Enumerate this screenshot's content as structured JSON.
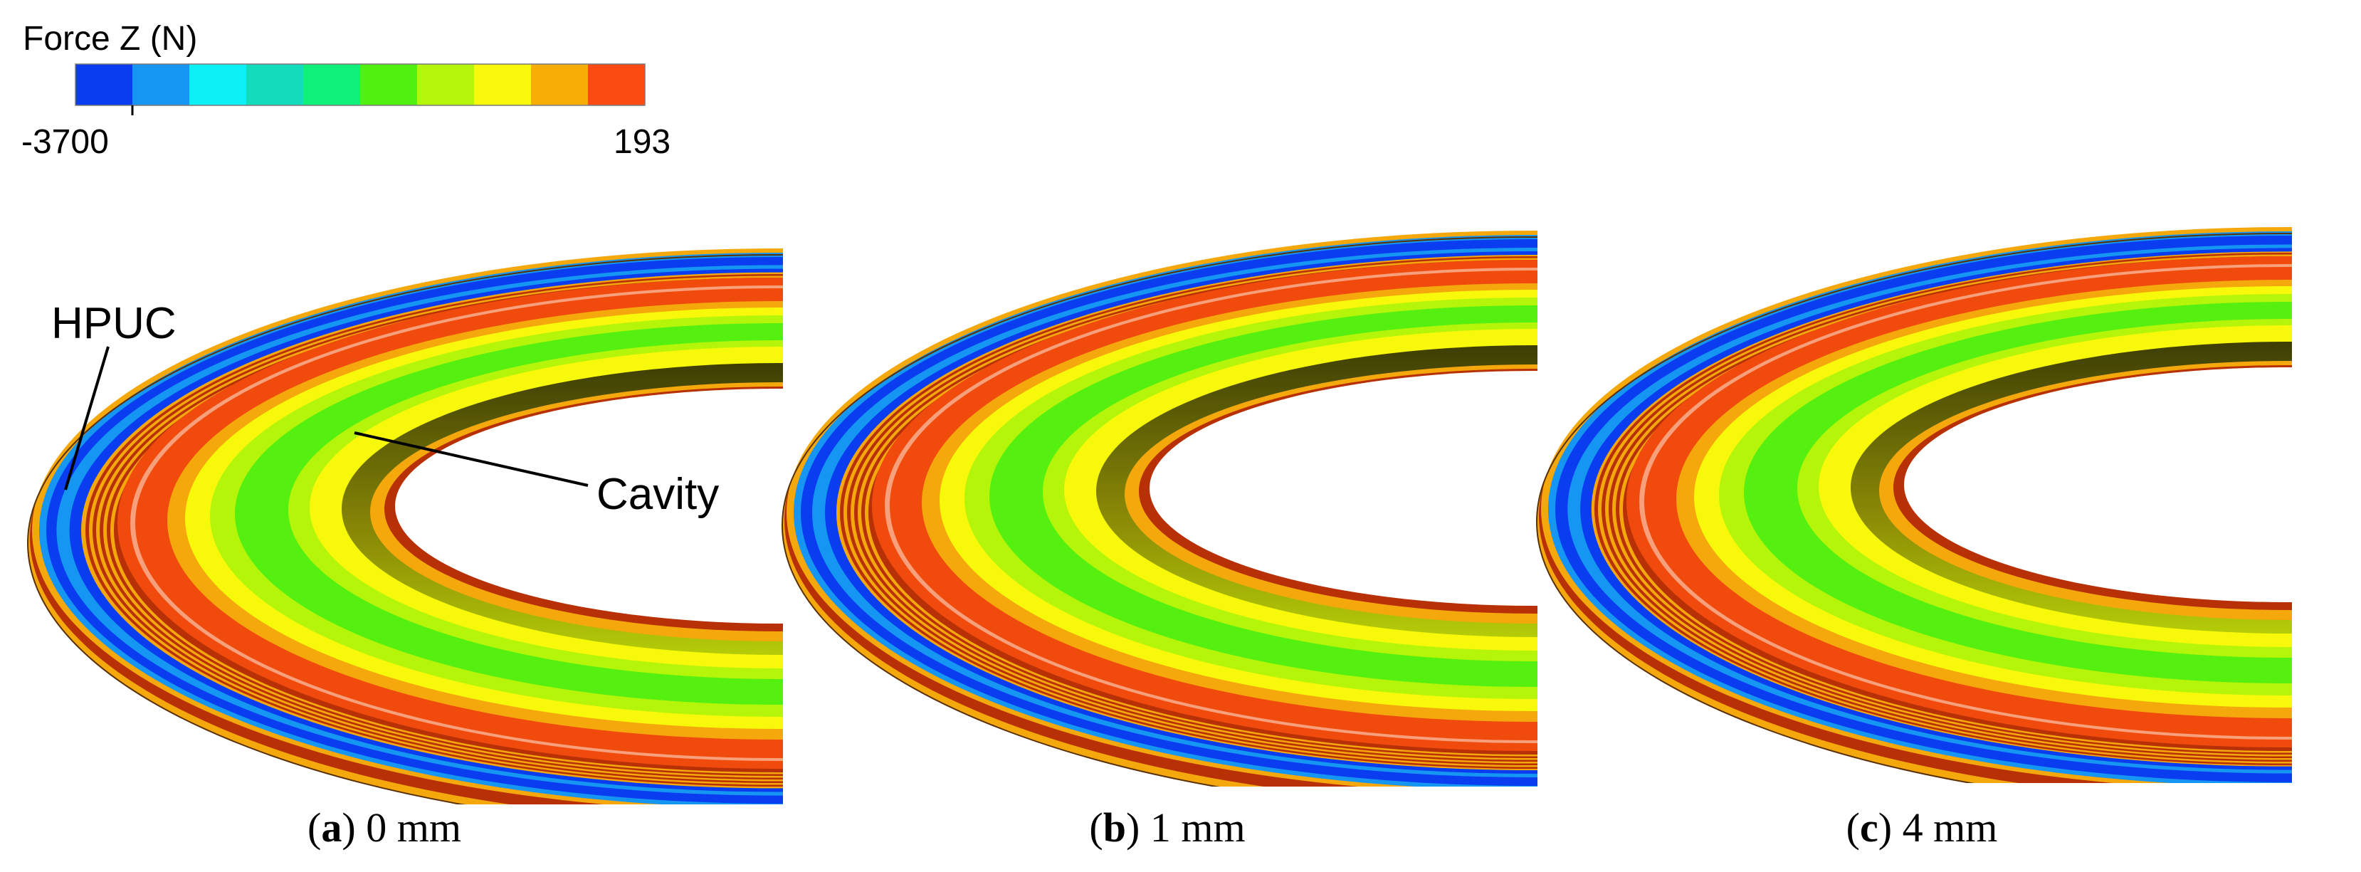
{
  "legend": {
    "title": "Force Z (N)",
    "min_label": "-3700",
    "max_label": "193",
    "bands": [
      "#0a3cf0",
      "#1596f2",
      "#0cf0f6",
      "#13dcbc",
      "#0ef07a",
      "#50f00f",
      "#b4f50a",
      "#f8f80a",
      "#f8ac06",
      "#fb4a12"
    ]
  },
  "annotations": {
    "hpuc": "HPUC",
    "cavity": "Cavity"
  },
  "panels": [
    {
      "letter": "a",
      "open": "(",
      "close": ")",
      "value": " 0 mm"
    },
    {
      "letter": "b",
      "open": "(",
      "close": ")",
      "value": " 1 mm"
    },
    {
      "letter": "c",
      "open": "(",
      "close": ")",
      "value": " 4 mm"
    }
  ],
  "colors": {
    "red": "#f04a0c",
    "dark_red": "#b83006",
    "orange": "#f5a80c",
    "yellow": "#f8f80a",
    "yellow_green": "#b4f50a",
    "green": "#55f010",
    "olive": "#6b6b05",
    "blue": "#0a3cf0",
    "cyan": "#1596f2"
  }
}
